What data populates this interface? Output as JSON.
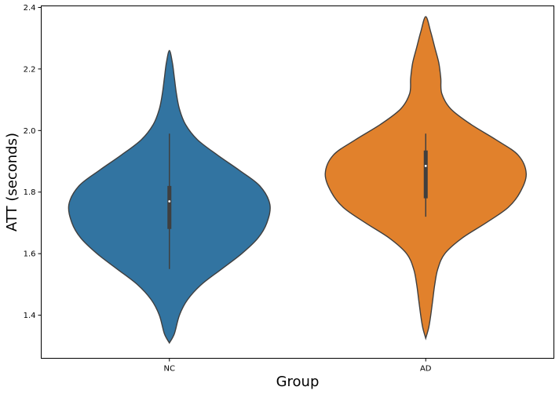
{
  "chart_data": {
    "type": "violin",
    "xlabel": "Group",
    "ylabel": "ATT (seconds)",
    "ylim": [
      1.26,
      2.405
    ],
    "yticks": [
      "1.4",
      "1.6",
      "1.8",
      "2.0",
      "2.2",
      "2.4"
    ],
    "categories": [
      "NC",
      "AD"
    ],
    "series": [
      {
        "color": "#3274a1",
        "min": 1.55,
        "q1": 1.68,
        "median": 1.77,
        "q3": 1.82,
        "max": 1.99,
        "range": [
          1.31,
          2.26
        ],
        "profile": [
          [
            1.31,
            0.0
          ],
          [
            1.34,
            0.05
          ],
          [
            1.4,
            0.1
          ],
          [
            1.45,
            0.18
          ],
          [
            1.5,
            0.32
          ],
          [
            1.55,
            0.52
          ],
          [
            1.6,
            0.72
          ],
          [
            1.65,
            0.88
          ],
          [
            1.7,
            0.97
          ],
          [
            1.76,
            1.0
          ],
          [
            1.82,
            0.9
          ],
          [
            1.87,
            0.7
          ],
          [
            1.92,
            0.48
          ],
          [
            1.97,
            0.28
          ],
          [
            2.02,
            0.16
          ],
          [
            2.07,
            0.1
          ],
          [
            2.12,
            0.07
          ],
          [
            2.17,
            0.05
          ],
          [
            2.22,
            0.03
          ],
          [
            2.26,
            0.0
          ]
        ]
      },
      {
        "color": "#e1812c",
        "min": 1.72,
        "q1": 1.78,
        "median": 1.885,
        "q3": 1.935,
        "max": 1.99,
        "range": [
          1.325,
          2.37
        ],
        "profile": [
          [
            1.325,
            0.0
          ],
          [
            1.36,
            0.03
          ],
          [
            1.4,
            0.05
          ],
          [
            1.45,
            0.07
          ],
          [
            1.5,
            0.09
          ],
          [
            1.55,
            0.12
          ],
          [
            1.6,
            0.19
          ],
          [
            1.65,
            0.36
          ],
          [
            1.7,
            0.6
          ],
          [
            1.75,
            0.82
          ],
          [
            1.8,
            0.94
          ],
          [
            1.86,
            1.0
          ],
          [
            1.92,
            0.92
          ],
          [
            1.97,
            0.7
          ],
          [
            2.02,
            0.45
          ],
          [
            2.07,
            0.25
          ],
          [
            2.12,
            0.16
          ],
          [
            2.17,
            0.15
          ],
          [
            2.22,
            0.13
          ],
          [
            2.27,
            0.09
          ],
          [
            2.32,
            0.05
          ],
          [
            2.37,
            0.0
          ]
        ]
      }
    ]
  }
}
